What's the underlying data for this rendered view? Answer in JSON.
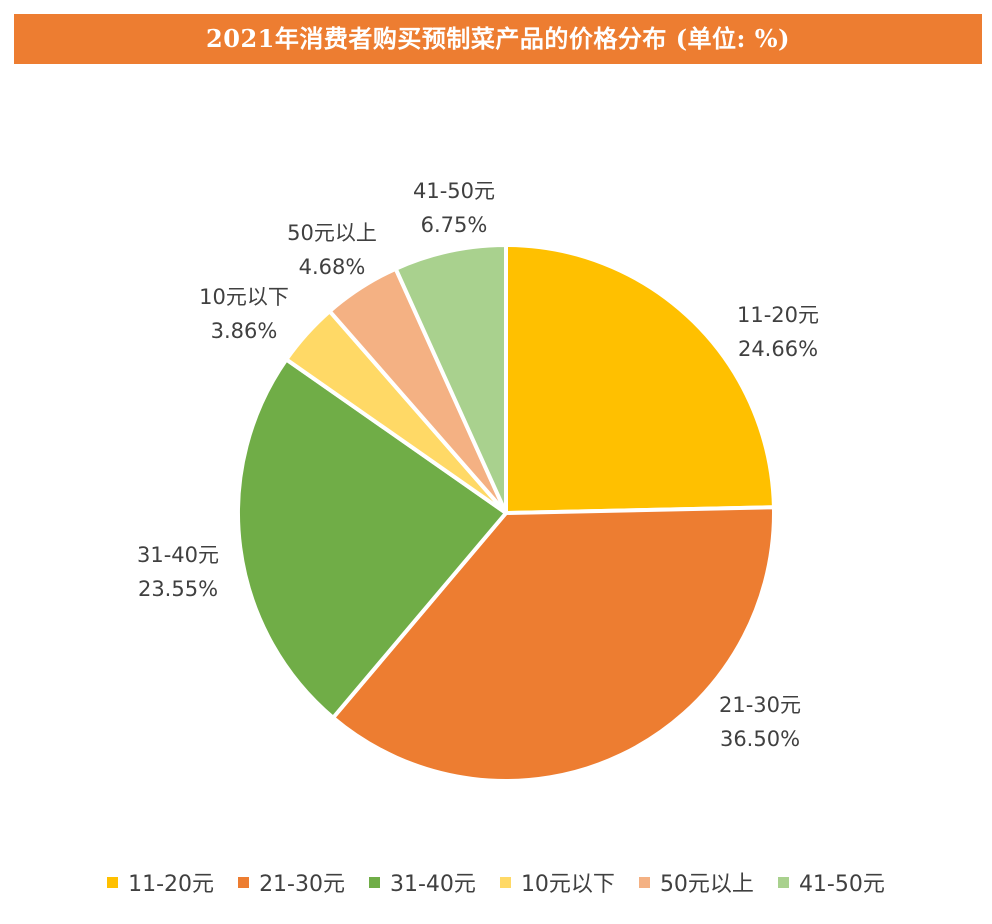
{
  "title": "2021年消费者购买预制菜产品的价格分布 (单位: %)",
  "chart_data": {
    "type": "pie",
    "title": "2021年消费者购买预制菜产品的价格分布 (单位: %)",
    "legend_position": "bottom",
    "slices": [
      {
        "label": "11-20元",
        "value": 24.66,
        "value_label": "24.66%",
        "color": "#FFC000"
      },
      {
        "label": "21-30元",
        "value": 36.5,
        "value_label": "36.50%",
        "color": "#ED7D31"
      },
      {
        "label": "31-40元",
        "value": 23.55,
        "value_label": "23.55%",
        "color": "#70AD47"
      },
      {
        "label": "10元以下",
        "value": 3.86,
        "value_label": "3.86%",
        "color": "#FFD966"
      },
      {
        "label": "50元以上",
        "value": 4.68,
        "value_label": "4.68%",
        "color": "#F4B183"
      },
      {
        "label": "41-50元",
        "value": 6.75,
        "value_label": "6.75%",
        "color": "#A9D18E"
      }
    ]
  }
}
